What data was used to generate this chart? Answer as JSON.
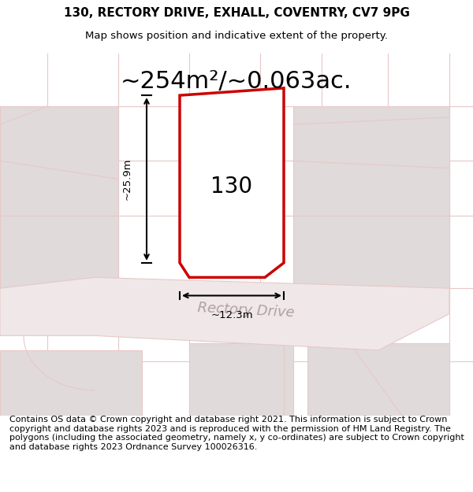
{
  "title_line1": "130, RECTORY DRIVE, EXHALL, COVENTRY, CV7 9PG",
  "title_line2": "Map shows position and indicative extent of the property.",
  "area_text": "~254m²/~0.063ac.",
  "label_130": "130",
  "label_road": "Rectory Drive",
  "dim_width": "~12.3m",
  "dim_height": "~25.9m",
  "footer_text": "Contains OS data © Crown copyright and database right 2021. This information is subject to Crown copyright and database rights 2023 and is reproduced with the permission of HM Land Registry. The polygons (including the associated geometry, namely x, y co-ordinates) are subject to Crown copyright and database rights 2023 Ordnance Survey 100026316.",
  "bg_color": "#ffffff",
  "map_bg": "#f5f0f0",
  "plot_fill": "#ffffff",
  "plot_edge": "#cc0000",
  "grid_color": "#e8c8c8",
  "road_color": "#e8c8c8",
  "dim_color": "#000000",
  "text_color": "#000000",
  "road_text_color": "#b0a0a0",
  "title_fontsize": 11,
  "subtitle_fontsize": 9.5,
  "area_fontsize": 22,
  "label_fontsize": 20,
  "footer_fontsize": 8.0
}
